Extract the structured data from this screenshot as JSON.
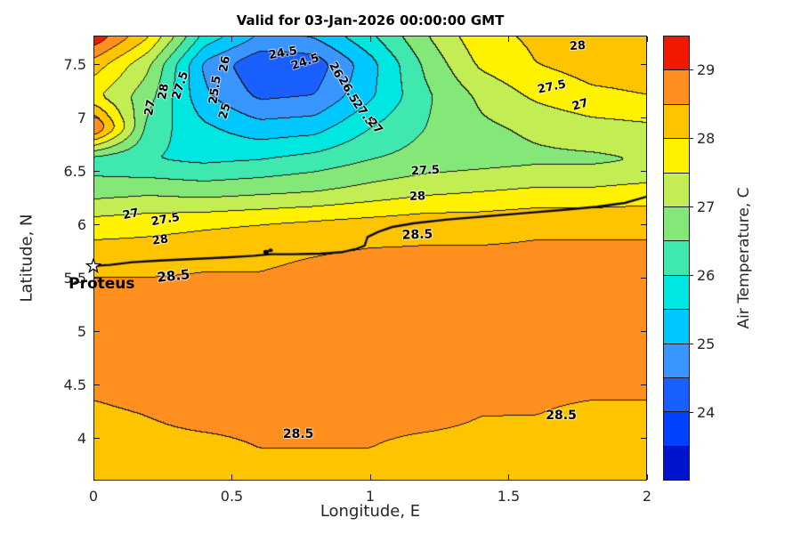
{
  "figure": {
    "title": "Valid for 03-Jan-2026 00:00:00 GMT"
  },
  "axes": {
    "x": {
      "label": "Longitude, E",
      "min": 0,
      "max": 2,
      "ticks": [
        {
          "v": 0,
          "label": "0"
        },
        {
          "v": 0.5,
          "label": "0.5"
        },
        {
          "v": 1,
          "label": "1"
        },
        {
          "v": 1.5,
          "label": "1.5"
        },
        {
          "v": 2,
          "label": "2"
        }
      ]
    },
    "y": {
      "label": "Latitude, N",
      "min": 3.6,
      "max": 7.7667,
      "ticks": [
        {
          "v": 4,
          "label": "4"
        },
        {
          "v": 4.5,
          "label": "4.5"
        },
        {
          "v": 5,
          "label": "5"
        },
        {
          "v": 5.5,
          "label": "5.5"
        },
        {
          "v": 6,
          "label": "6"
        },
        {
          "v": 6.5,
          "label": "6.5"
        },
        {
          "v": 7,
          "label": "7"
        },
        {
          "v": 7.5,
          "label": "7.5"
        }
      ]
    }
  },
  "colorbar": {
    "label": "Air Temperature, C",
    "min": 23,
    "max": 29.5,
    "band_step": 0.5,
    "tick_values": [
      24,
      25,
      26,
      27,
      28,
      29
    ],
    "band_colors": [
      "#0014cc",
      "#0041ff",
      "#1a5fff",
      "#3a96ff",
      "#00c8ff",
      "#00e6e1",
      "#3fe8af",
      "#84e878",
      "#c3ee53",
      "#fff200",
      "#ffc400",
      "#ff8f1f",
      "#f01800"
    ]
  },
  "chart_data": {
    "type": "heatmap",
    "subtype": "filled-contour",
    "title": "Valid for 03-Jan-2026 00:00:00 GMT",
    "xlabel": "Longitude, E",
    "ylabel": "Latitude, N",
    "value_label": "Air Temperature, C",
    "xlim": [
      0,
      2
    ],
    "ylim": [
      3.6,
      7.7667
    ],
    "contour_interval": 0.5,
    "contour_levels": [
      24,
      24.5,
      25,
      25.5,
      26,
      26.5,
      27,
      27.5,
      28,
      28.5
    ],
    "grid": {
      "lons": [
        0,
        0.2,
        0.4,
        0.6,
        0.8,
        1.0,
        1.2,
        1.4,
        1.6,
        1.8,
        2.0
      ],
      "lats": [
        7.8,
        7.5,
        7.2,
        6.9,
        6.6,
        6.3,
        6.0,
        5.7,
        5.4,
        5.1,
        4.8,
        4.5,
        4.2,
        3.9,
        3.6
      ],
      "temperature": [
        [
          29.6,
          28.2,
          26.0,
          25.1,
          25.2,
          26.0,
          27.0,
          27.9,
          28.1,
          28.3,
          28.3
        ],
        [
          28.3,
          27.1,
          24.9,
          24.1,
          24.2,
          25.3,
          26.6,
          27.6,
          28.0,
          28.2,
          28.2
        ],
        [
          27.6,
          26.7,
          25.1,
          24.4,
          24.5,
          25.4,
          26.4,
          27.1,
          27.6,
          27.9,
          28.0
        ],
        [
          29.2,
          26.3,
          25.6,
          25.2,
          25.3,
          26.0,
          26.5,
          26.9,
          27.1,
          27.3,
          27.4
        ],
        [
          26.2,
          26.0,
          25.9,
          26.0,
          26.2,
          26.5,
          26.7,
          26.8,
          26.9,
          26.9,
          27.0
        ],
        [
          26.8,
          26.9,
          26.8,
          26.9,
          27.0,
          27.2,
          27.4,
          27.5,
          27.6,
          27.6,
          27.7
        ],
        [
          27.7,
          27.8,
          27.9,
          28.0,
          28.1,
          28.2,
          28.3,
          28.3,
          28.4,
          28.4,
          28.4
        ],
        [
          28.3,
          28.3,
          28.4,
          28.4,
          28.5,
          28.6,
          28.6,
          28.6,
          28.6,
          28.6,
          28.6
        ],
        [
          28.6,
          28.6,
          28.6,
          28.6,
          28.7,
          28.7,
          28.7,
          28.7,
          28.7,
          28.7,
          28.7
        ],
        [
          28.6,
          28.7,
          28.7,
          28.7,
          28.7,
          28.7,
          28.7,
          28.7,
          28.7,
          28.7,
          28.7
        ],
        [
          28.7,
          28.7,
          28.7,
          28.7,
          28.7,
          28.7,
          28.7,
          28.7,
          28.7,
          28.7,
          28.7
        ],
        [
          28.6,
          28.7,
          28.7,
          28.7,
          28.7,
          28.7,
          28.7,
          28.6,
          28.6,
          28.6,
          28.6
        ],
        [
          28.4,
          28.5,
          28.6,
          28.6,
          28.6,
          28.6,
          28.6,
          28.5,
          28.5,
          28.4,
          28.4
        ],
        [
          28.3,
          28.4,
          28.4,
          28.5,
          28.5,
          28.5,
          28.4,
          28.4,
          28.3,
          28.3,
          28.3
        ],
        [
          28.2,
          28.3,
          28.3,
          28.4,
          28.4,
          28.4,
          28.3,
          28.3,
          28.2,
          28.2,
          28.2
        ]
      ]
    },
    "contour_labels": [
      {
        "text": "28",
        "lon": 1.75,
        "lat": 7.67,
        "rot": -4
      },
      {
        "text": "24.5",
        "lon": 0.685,
        "lat": 7.6,
        "rot": -10
      },
      {
        "text": "24.5",
        "lon": 0.765,
        "lat": 7.515,
        "rot": -18
      },
      {
        "text": "26",
        "lon": 0.475,
        "lat": 7.5,
        "rot": -80
      },
      {
        "text": "25.5",
        "lon": 0.44,
        "lat": 7.26,
        "rot": -82
      },
      {
        "text": "25",
        "lon": 0.475,
        "lat": 7.06,
        "rot": -75
      },
      {
        "text": "26",
        "lon": 0.875,
        "lat": 7.44,
        "rot": 62
      },
      {
        "text": "26.5",
        "lon": 0.92,
        "lat": 7.26,
        "rot": 60
      },
      {
        "text": "27.5",
        "lon": 0.975,
        "lat": 7.04,
        "rot": 55
      },
      {
        "text": "27",
        "lon": 1.015,
        "lat": 6.92,
        "rot": 50
      },
      {
        "text": "27",
        "lon": 0.205,
        "lat": 7.09,
        "rot": -80
      },
      {
        "text": "28",
        "lon": 0.255,
        "lat": 7.24,
        "rot": -80
      },
      {
        "text": "27.5",
        "lon": 0.315,
        "lat": 7.3,
        "rot": -72
      },
      {
        "text": "27.5",
        "lon": 1.2,
        "lat": 6.5,
        "rot": -3
      },
      {
        "text": "28",
        "lon": 1.17,
        "lat": 6.26,
        "rot": -2
      },
      {
        "text": "28.5",
        "lon": 1.17,
        "lat": 5.9,
        "rot": -2,
        "size": 14
      },
      {
        "text": "27",
        "lon": 0.135,
        "lat": 6.09,
        "rot": -12
      },
      {
        "text": "27.5",
        "lon": 0.26,
        "lat": 6.04,
        "rot": -10
      },
      {
        "text": "28",
        "lon": 0.24,
        "lat": 5.85,
        "rot": -8
      },
      {
        "text": "28.5",
        "lon": 0.29,
        "lat": 5.52,
        "rot": -6,
        "size": 15
      },
      {
        "text": "28.5",
        "lon": 0.74,
        "lat": 4.03,
        "rot": 0,
        "size": 14
      },
      {
        "text": "28.5",
        "lon": 1.69,
        "lat": 4.21,
        "rot": 0,
        "size": 14
      },
      {
        "text": "27",
        "lon": 1.76,
        "lat": 7.12,
        "rot": -16
      },
      {
        "text": "27.5",
        "lon": 1.655,
        "lat": 7.28,
        "rot": -12
      }
    ],
    "track": {
      "name": "Proteus",
      "label_lon": 0.03,
      "label_lat": 5.44,
      "star_lon": 0.0,
      "star_lat": 5.61,
      "ship_lon": 0.63,
      "ship_lat": 5.74,
      "points": [
        [
          0.0,
          5.61
        ],
        [
          0.06,
          5.62
        ],
        [
          0.14,
          5.645
        ],
        [
          0.24,
          5.66
        ],
        [
          0.36,
          5.675
        ],
        [
          0.48,
          5.69
        ],
        [
          0.58,
          5.705
        ],
        [
          0.64,
          5.72
        ],
        [
          0.72,
          5.72
        ],
        [
          0.82,
          5.725
        ],
        [
          0.9,
          5.74
        ],
        [
          0.95,
          5.77
        ],
        [
          0.98,
          5.8
        ],
        [
          0.99,
          5.88
        ],
        [
          1.03,
          5.93
        ],
        [
          1.08,
          5.975
        ],
        [
          1.16,
          6.01
        ],
        [
          1.28,
          6.045
        ],
        [
          1.42,
          6.075
        ],
        [
          1.56,
          6.105
        ],
        [
          1.7,
          6.135
        ],
        [
          1.82,
          6.165
        ],
        [
          1.92,
          6.2
        ],
        [
          2.0,
          6.26
        ]
      ]
    }
  }
}
